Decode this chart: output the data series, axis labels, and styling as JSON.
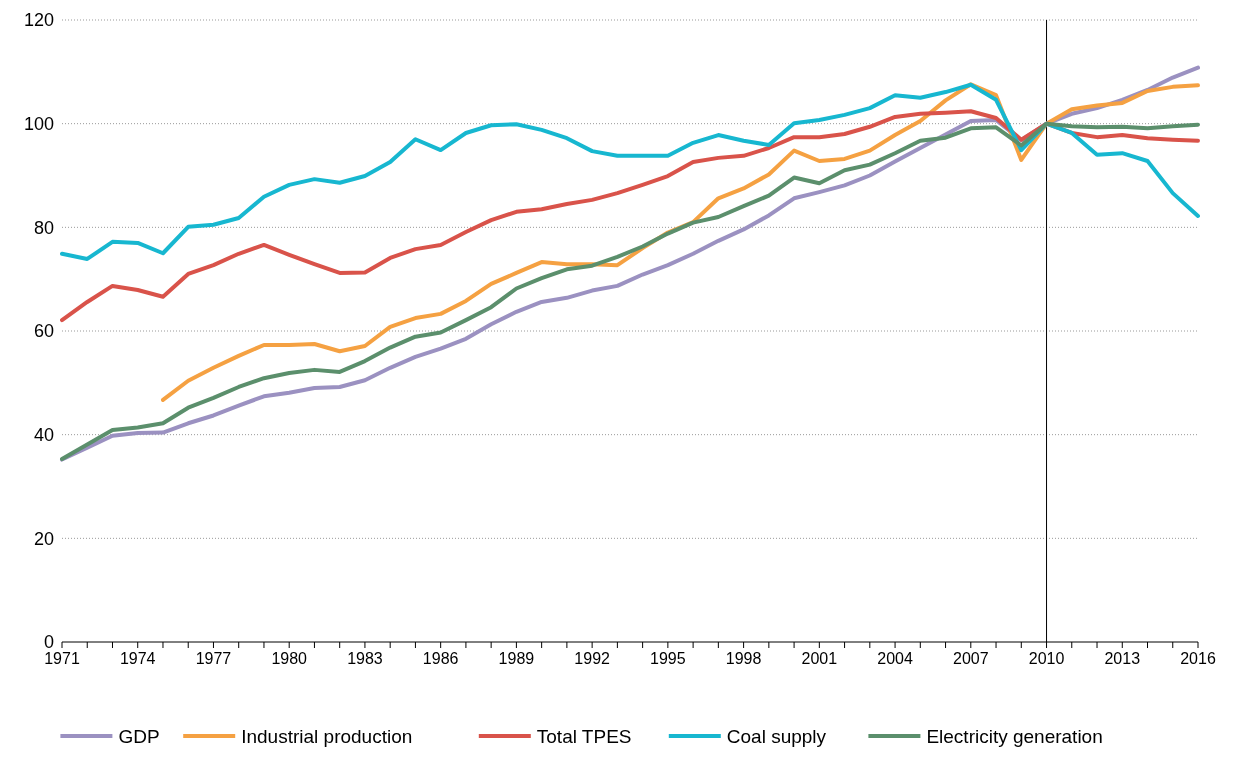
{
  "chart_data": {
    "type": "line",
    "x": [
      1971,
      1972,
      1973,
      1974,
      1975,
      1976,
      1977,
      1978,
      1979,
      1980,
      1981,
      1982,
      1983,
      1984,
      1985,
      1986,
      1987,
      1988,
      1989,
      1990,
      1991,
      1992,
      1993,
      1994,
      1995,
      1996,
      1997,
      1998,
      1999,
      2000,
      2001,
      2002,
      2003,
      2004,
      2005,
      2006,
      2007,
      2008,
      2009,
      2010,
      2011,
      2012,
      2013,
      2014,
      2015,
      2016
    ],
    "xlim": [
      1971,
      2016
    ],
    "xticks": [
      1971,
      {
        "value": 1972,
        "label": null
      },
      {
        "value": 1973,
        "label": null
      },
      1974,
      {
        "value": 1975,
        "label": null
      },
      {
        "value": 1976,
        "label": null
      },
      1977,
      {
        "value": 1978,
        "label": null
      },
      {
        "value": 1979,
        "label": null
      },
      1980,
      {
        "value": 1981,
        "label": null
      },
      {
        "value": 1982,
        "label": null
      },
      1983,
      {
        "value": 1984,
        "label": null
      },
      {
        "value": 1985,
        "label": null
      },
      1986,
      {
        "value": 1987,
        "label": null
      },
      {
        "value": 1988,
        "label": null
      },
      1989,
      {
        "value": 1990,
        "label": null
      },
      {
        "value": 1991,
        "label": null
      },
      1992,
      {
        "value": 1993,
        "label": null
      },
      {
        "value": 1994,
        "label": null
      },
      1995,
      {
        "value": 1996,
        "label": null
      },
      {
        "value": 1997,
        "label": null
      },
      1998,
      {
        "value": 1999,
        "label": null
      },
      {
        "value": 2000,
        "label": null
      },
      2001,
      {
        "value": 2002,
        "label": null
      },
      {
        "value": 2003,
        "label": null
      },
      2004,
      {
        "value": 2005,
        "label": null
      },
      {
        "value": 2006,
        "label": null
      },
      2007,
      {
        "value": 2008,
        "label": null
      },
      {
        "value": 2009,
        "label": null
      },
      2010,
      {
        "value": 2011,
        "label": null
      },
      {
        "value": 2012,
        "label": null
      },
      2013,
      {
        "value": 2014,
        "label": null
      },
      {
        "value": 2015,
        "label": null
      },
      2016
    ],
    "ylim": [
      0,
      120
    ],
    "yticks": [
      0,
      20,
      40,
      60,
      80,
      100,
      120
    ],
    "grid": "y",
    "legend": "bottom",
    "marker": "none",
    "line_style": "solid",
    "ref_lines": [
      {
        "axis": "x",
        "value": 2010,
        "color": "#000000"
      }
    ],
    "series": [
      {
        "name": "GDP",
        "color": "#9b91c1",
        "values": [
          35.2,
          37.5,
          39.8,
          40.3,
          40.4,
          42.2,
          43.7,
          45.6,
          47.4,
          48.1,
          49,
          49.2,
          50.5,
          52.9,
          55,
          56.6,
          58.5,
          61.3,
          63.7,
          65.6,
          66.4,
          67.8,
          68.7,
          70.9,
          72.7,
          74.9,
          77.4,
          79.6,
          82.3,
          85.6,
          86.8,
          88.1,
          90,
          92.7,
          95.3,
          97.9,
          100.5,
          100.7,
          96.8,
          100,
          101.9,
          103,
          104.6,
          106.5,
          108.9,
          110.8
        ]
      },
      {
        "name": "Industrial production",
        "color": "#f5a142",
        "values": [
          null,
          null,
          null,
          null,
          46.7,
          50.4,
          52.9,
          55.2,
          57.3,
          57.3,
          57.5,
          56.1,
          57.1,
          60.8,
          62.5,
          63.3,
          65.8,
          69.1,
          71.2,
          73.3,
          72.9,
          72.9,
          72.7,
          76,
          79,
          81,
          85.6,
          87.5,
          90.2,
          94.8,
          92.8,
          93.2,
          94.8,
          97.8,
          100.5,
          104.5,
          107.6,
          105.5,
          93,
          100,
          102.8,
          103.5,
          104,
          106.3,
          107.1,
          107.4
        ]
      },
      {
        "name": "Total TPES",
        "color": "#d9534a",
        "values": [
          62.1,
          65.6,
          68.7,
          67.9,
          66.6,
          71,
          72.7,
          74.9,
          76.6,
          74.7,
          72.9,
          71.2,
          71.3,
          74.1,
          75.8,
          76.6,
          79.1,
          81.4,
          83,
          83.5,
          84.5,
          85.3,
          86.6,
          88.2,
          89.9,
          92.6,
          93.4,
          93.8,
          95.3,
          97.4,
          97.4,
          98,
          99.4,
          101.3,
          101.9,
          102.1,
          102.4,
          101.1,
          96.9,
          100,
          98.2,
          97.4,
          97.8,
          97.2,
          96.9,
          96.7
        ]
      },
      {
        "name": "Coal supply",
        "color": "#17b7d0",
        "values": [
          74.9,
          73.9,
          77.2,
          77,
          75,
          80.1,
          80.5,
          81.8,
          85.9,
          88.2,
          89.3,
          88.6,
          89.9,
          92.6,
          97,
          94.9,
          98.2,
          99.7,
          99.9,
          98.8,
          97.2,
          94.7,
          93.8,
          93.8,
          93.8,
          96.3,
          97.8,
          96.7,
          95.9,
          100.1,
          100.7,
          101.7,
          103,
          105.5,
          105,
          106.1,
          107.5,
          104.6,
          94.9,
          100,
          98.2,
          94,
          94.3,
          92.8,
          86.6,
          82.2
        ]
      },
      {
        "name": "Electricity generation",
        "color": "#5b8f6c",
        "values": [
          35.3,
          38.1,
          40.9,
          41.4,
          42.2,
          45.2,
          47.1,
          49.2,
          50.9,
          51.9,
          52.5,
          52.1,
          54.2,
          56.8,
          58.9,
          59.7,
          62.1,
          64.6,
          68.2,
          70.2,
          71.9,
          72.6,
          74.3,
          76.3,
          78.8,
          80.9,
          82,
          84.1,
          86.1,
          89.6,
          88.5,
          91,
          92.1,
          94.3,
          96.7,
          97.3,
          99.1,
          99.3,
          95.8,
          100,
          99.5,
          99.3,
          99.4,
          99.1,
          99.5,
          99.8
        ]
      }
    ]
  }
}
